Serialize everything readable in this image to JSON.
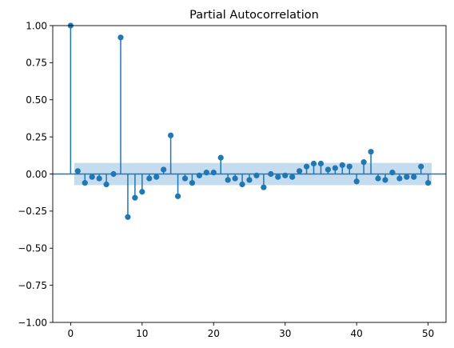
{
  "chart_data": {
    "type": "stem",
    "title": "Partial Autocorrelation",
    "xlabel": "",
    "ylabel": "",
    "xlim": [
      -2.5,
      52.5
    ],
    "ylim": [
      -1.0,
      1.0
    ],
    "x_ticks": [
      0,
      10,
      20,
      30,
      40,
      50
    ],
    "y_ticks": [
      -1.0,
      -0.75,
      -0.5,
      -0.25,
      0.0,
      0.25,
      0.5,
      0.75,
      1.0
    ],
    "x_tick_labels": [
      "0",
      "10",
      "20",
      "30",
      "40",
      "50"
    ],
    "y_tick_labels": [
      "−1.00",
      "−0.75",
      "−0.50",
      "−0.25",
      "0.00",
      "0.25",
      "0.50",
      "0.75",
      "1.00"
    ],
    "grid": false,
    "colors": {
      "stem": "#1f77b4",
      "band": "#a6c8e5",
      "axis": "#000000"
    },
    "confidence_band": {
      "lower": -0.075,
      "upper": 0.075,
      "x_range": [
        0.5,
        50.5
      ]
    },
    "lags": [
      0,
      1,
      2,
      3,
      4,
      5,
      6,
      7,
      8,
      9,
      10,
      11,
      12,
      13,
      14,
      15,
      16,
      17,
      18,
      19,
      20,
      21,
      22,
      23,
      24,
      25,
      26,
      27,
      28,
      29,
      30,
      31,
      32,
      33,
      34,
      35,
      36,
      37,
      38,
      39,
      40,
      41,
      42,
      43,
      44,
      45,
      46,
      47,
      48,
      49,
      50
    ],
    "values": [
      1.0,
      0.02,
      -0.06,
      -0.02,
      -0.03,
      -0.07,
      0.0,
      0.92,
      -0.29,
      -0.16,
      -0.12,
      -0.03,
      -0.02,
      0.03,
      0.26,
      -0.15,
      -0.03,
      -0.06,
      -0.01,
      0.01,
      0.01,
      0.11,
      -0.04,
      -0.03,
      -0.07,
      -0.04,
      -0.01,
      -0.09,
      0.0,
      -0.02,
      -0.01,
      -0.02,
      0.02,
      0.05,
      0.07,
      0.07,
      0.03,
      0.04,
      0.06,
      0.05,
      -0.05,
      0.08,
      0.15,
      -0.03,
      -0.04,
      0.01,
      -0.03,
      -0.02,
      -0.02,
      0.05,
      -0.06
    ]
  }
}
